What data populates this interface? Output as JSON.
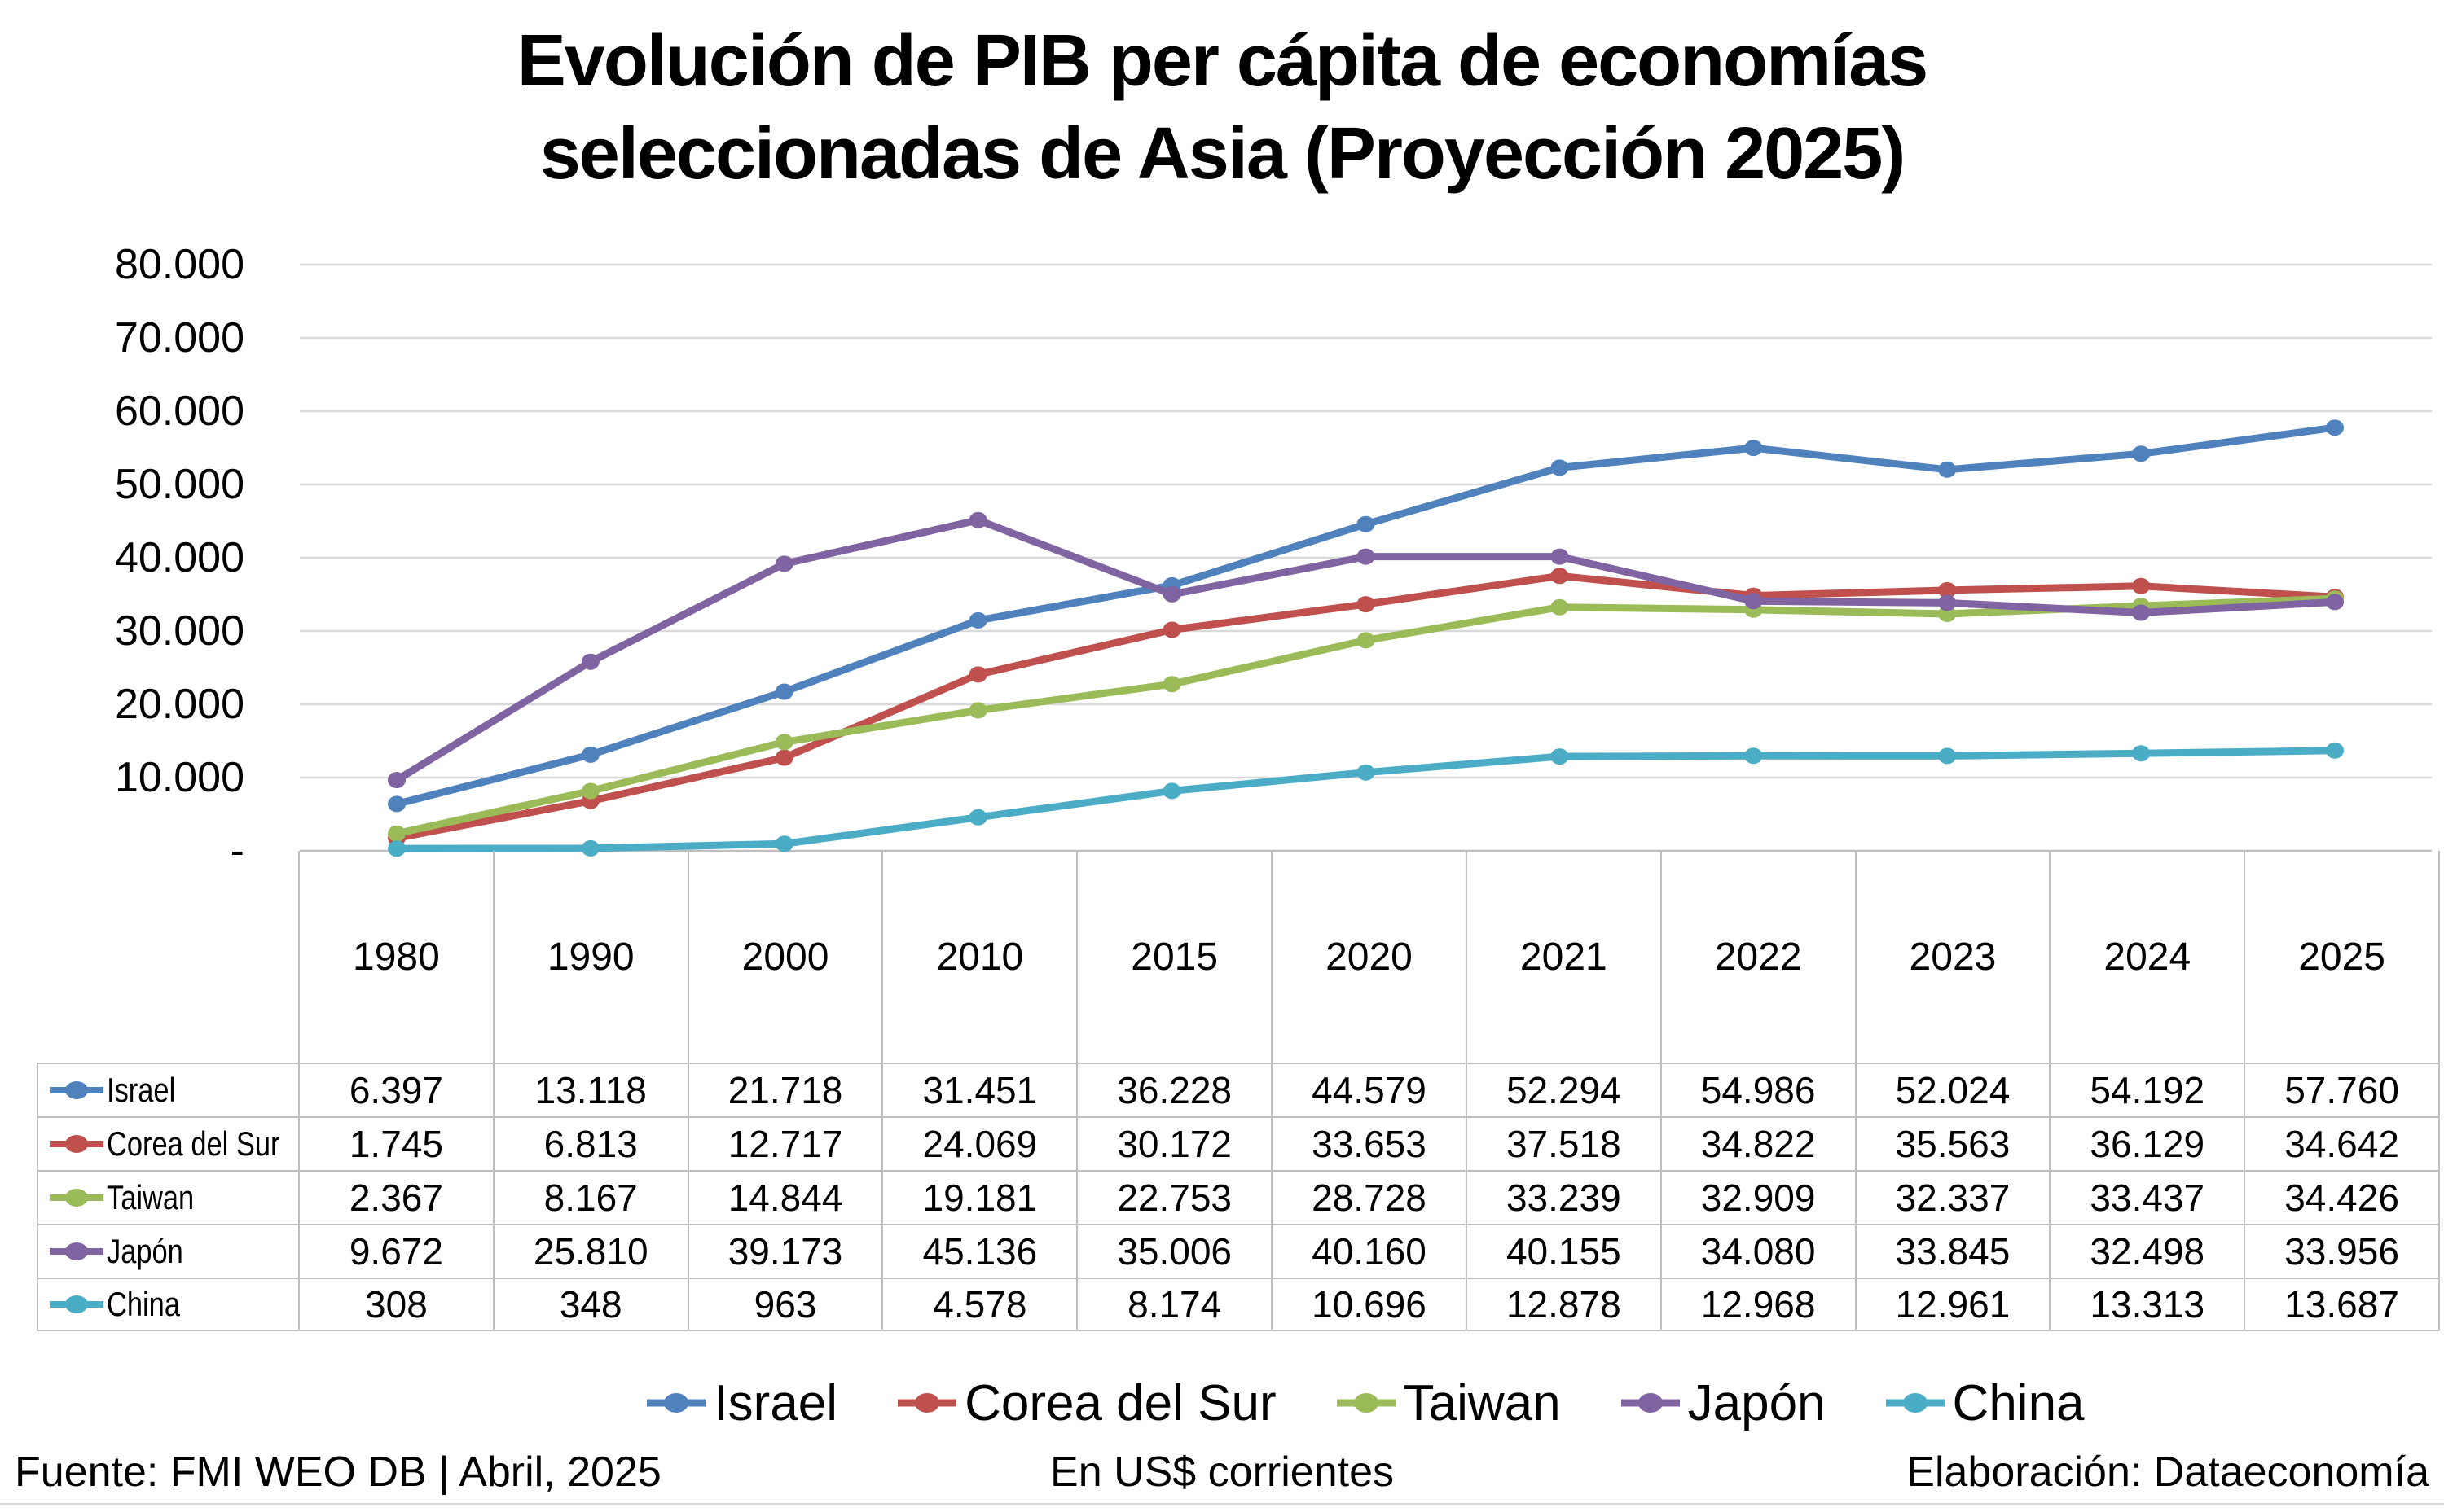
{
  "title": {
    "line1": "Evolución de PIB per cápita de economías",
    "line2": "seleccionadas de Asia (Proyección 2025)"
  },
  "chart_data": {
    "type": "line",
    "title": "Evolución de PIB per cápita de economías seleccionadas de Asia (Proyección 2025)",
    "categories": [
      "1980",
      "1990",
      "2000",
      "2010",
      "2015",
      "2020",
      "2021",
      "2022",
      "2023",
      "2024",
      "2025"
    ],
    "series": [
      {
        "name": "Israel",
        "color": "#4F81BD",
        "values": [
          6397,
          13118,
          21718,
          31451,
          36228,
          44579,
          52294,
          54986,
          52024,
          54192,
          57760
        ]
      },
      {
        "name": "Corea del Sur",
        "color": "#C0504D",
        "values": [
          1745,
          6813,
          12717,
          24069,
          30172,
          33653,
          37518,
          34822,
          35563,
          36129,
          34642
        ]
      },
      {
        "name": "Taiwan",
        "color": "#9BBB59",
        "values": [
          2367,
          8167,
          14844,
          19181,
          22753,
          28728,
          33239,
          32909,
          32337,
          33437,
          34426
        ]
      },
      {
        "name": "Japón",
        "color": "#8064A2",
        "values": [
          9672,
          25810,
          39173,
          45136,
          35006,
          40160,
          40155,
          34080,
          33845,
          32498,
          33956
        ]
      },
      {
        "name": "China",
        "color": "#4BACC6",
        "values": [
          308,
          348,
          963,
          4578,
          8174,
          10696,
          12878,
          12968,
          12961,
          13313,
          13687
        ]
      }
    ],
    "ylim": [
      0,
      80000
    ],
    "ytick_step": 10000,
    "ytick_labels": [
      "-",
      "10.000",
      "20.000",
      "30.000",
      "40.000",
      "50.000",
      "60.000",
      "70.000",
      "80.000"
    ],
    "grid": "horizontal",
    "legend_position": "bottom",
    "gridline_color": "#D9D9D9",
    "axis_color": "#BFBFBF"
  },
  "footer": {
    "source": "Fuente: FMI WEO DB | Abril, 2025",
    "units": "En US$ corrientes",
    "credit": "Elaboración: Dataeconomía"
  }
}
